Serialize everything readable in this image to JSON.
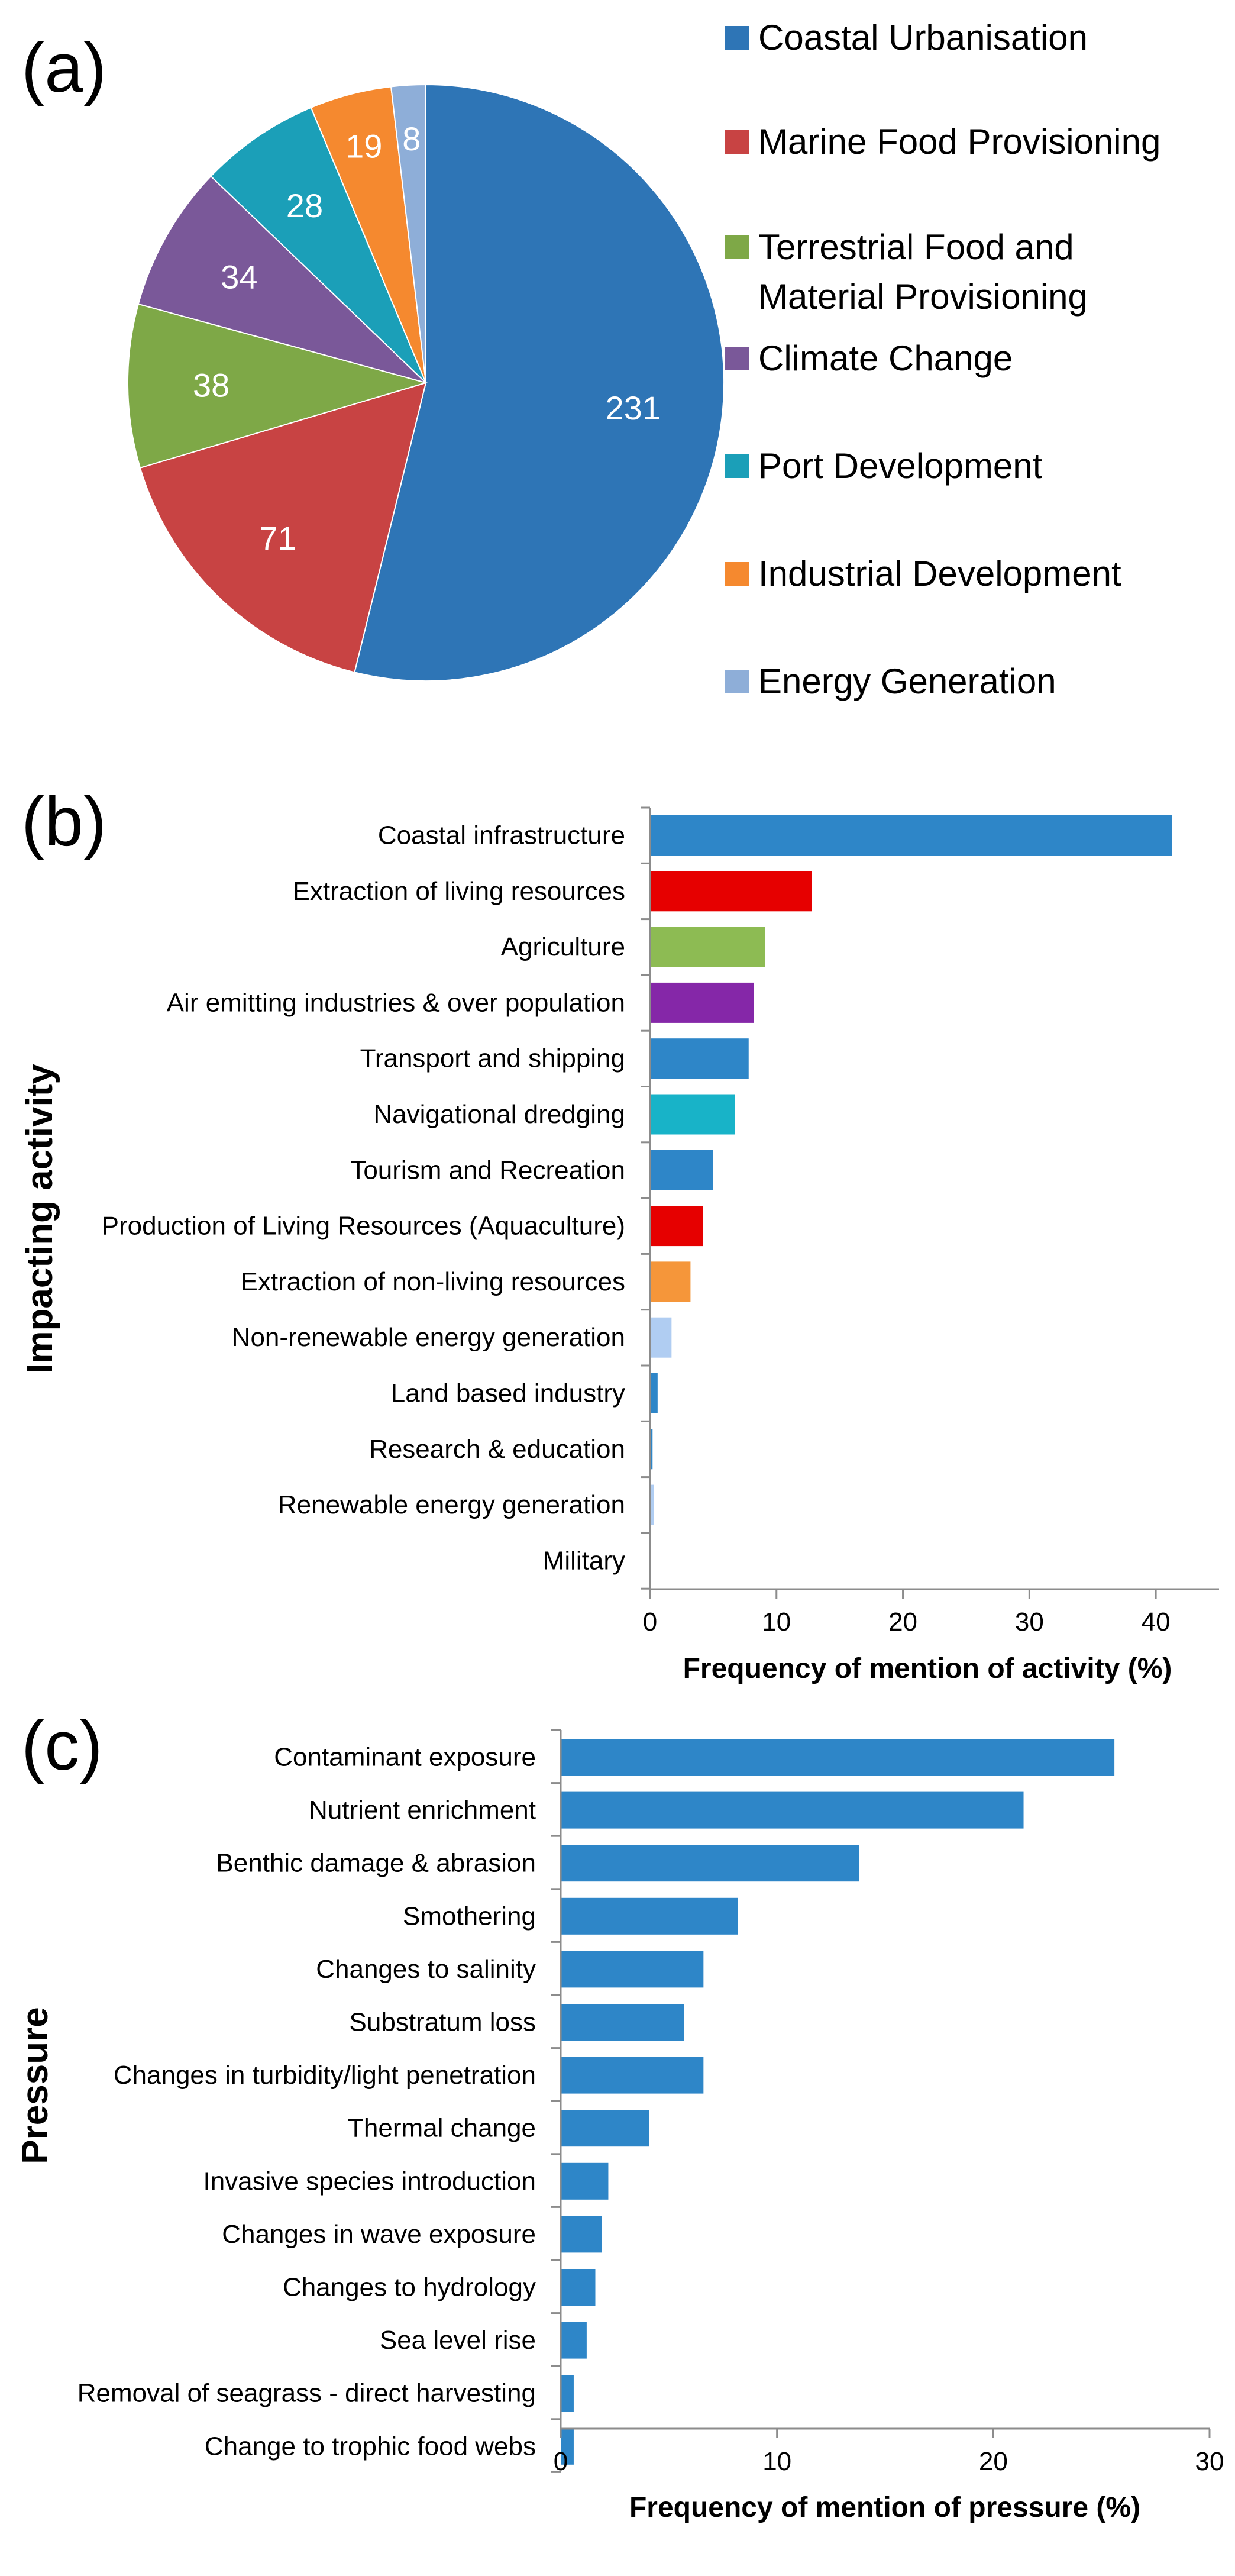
{
  "panel_labels": {
    "a": "(a)",
    "b": "(b)",
    "c": "(c)"
  },
  "chart_data": [
    {
      "panel": "(a)",
      "type": "pie",
      "legend_position": "right",
      "slices": [
        {
          "label": "Coastal Urbanisation",
          "value": 231,
          "color": "#2e75b6"
        },
        {
          "label": "Marine Food Provisioning",
          "value": 71,
          "color": "#c84343"
        },
        {
          "label": "Terrestrial Food and Material Provisioning",
          "label_lines": [
            "Terrestrial Food and",
            "Material Provisioning"
          ],
          "value": 38,
          "color": "#7ea847"
        },
        {
          "label": "Climate Change",
          "value": 34,
          "color": "#7a5899"
        },
        {
          "label": "Port Development",
          "value": 28,
          "color": "#1b9fb8"
        },
        {
          "label": "Industrial Development",
          "value": 19,
          "color": "#f5892f"
        },
        {
          "label": "Energy Generation",
          "value": 8,
          "color": "#8eaed8"
        }
      ]
    },
    {
      "panel": "(b)",
      "type": "bar",
      "orientation": "horizontal",
      "ylabel": "Impacting activity",
      "xlabel": "Frequency of mention of activity (%)",
      "xlim": [
        0,
        45
      ],
      "xticks": [
        0,
        10,
        20,
        30,
        40
      ],
      "categories": [
        "Coastal infrastructure",
        "Extraction of living resources",
        "Agriculture",
        "Air emitting industries & over population",
        "Transport and shipping",
        "Navigational dredging",
        "Tourism and Recreation",
        "Production of Living Resources (Aquaculture)",
        "Extraction of non-living resources",
        "Non-renewable energy generation",
        "Land based industry",
        "Research & education",
        "Renewable energy generation",
        "Military"
      ],
      "values": [
        41.3,
        12.8,
        9.1,
        8.2,
        7.8,
        6.7,
        5.0,
        4.2,
        3.2,
        1.7,
        0.6,
        0.2,
        0.3,
        0.0
      ],
      "colors": [
        "#2e86c8",
        "#e60000",
        "#8dbb53",
        "#8527a8",
        "#2e86c8",
        "#18b3c8",
        "#2e86c8",
        "#e60000",
        "#f5963a",
        "#b0cdf2",
        "#2e86c8",
        "#2e86c8",
        "#b0cdf2",
        "#2e86c8"
      ]
    },
    {
      "panel": "(c)",
      "type": "bar",
      "orientation": "horizontal",
      "ylabel": "Pressure",
      "xlabel": "Frequency of mention of pressure (%)",
      "xlim": [
        0,
        30
      ],
      "xticks": [
        0,
        10,
        20,
        30
      ],
      "color": "#2e86c8",
      "categories": [
        "Contaminant exposure",
        "Nutrient enrichment",
        "Benthic damage & abrasion",
        "Smothering",
        "Changes to salinity",
        "Substratum loss",
        "Changes in turbidity/light penetration",
        "Thermal change",
        "Invasive species introduction",
        "Changes in wave exposure",
        "Changes to hydrology",
        "Sea level rise",
        "Removal of seagrass - direct harvesting",
        "Change to trophic food webs"
      ],
      "values": [
        25.6,
        21.4,
        13.8,
        8.2,
        6.6,
        5.7,
        6.6,
        4.1,
        2.2,
        1.9,
        1.6,
        1.2,
        0.6,
        0.6
      ]
    }
  ]
}
